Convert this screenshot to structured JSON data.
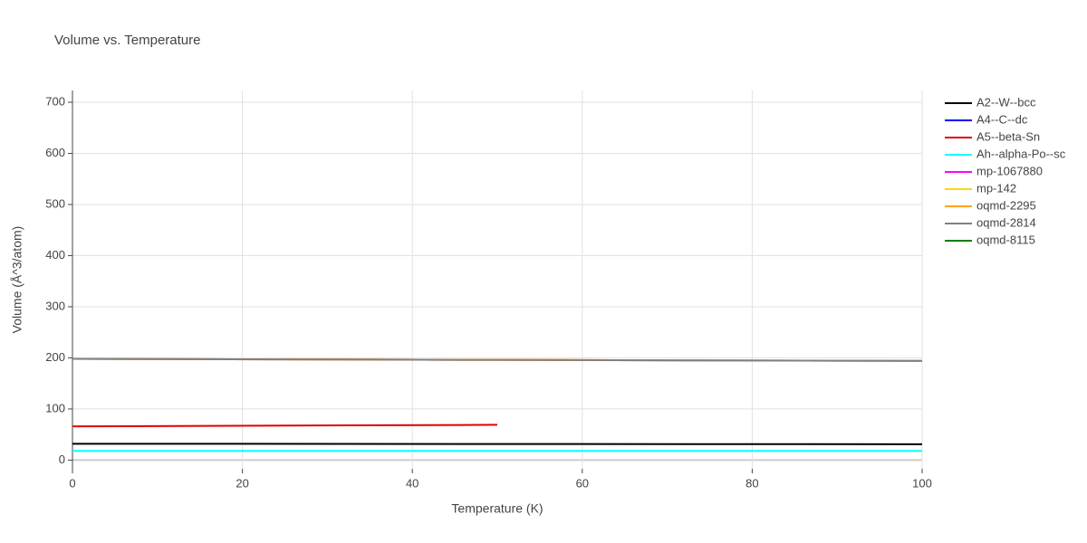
{
  "chart_data": {
    "type": "line",
    "title": "Volume vs. Temperature",
    "xlabel": "Temperature (K)",
    "ylabel": "Volume (Å^3/atom)",
    "x": [
      0,
      50,
      100
    ],
    "series": [
      {
        "name": "A2--W--bcc",
        "color": "#000000",
        "values": [
          32,
          31.5,
          31
        ]
      },
      {
        "name": "A4--C--dc",
        "color": "#0000ff",
        "values": [
          null,
          null,
          null
        ]
      },
      {
        "name": "A5--beta-Sn",
        "color": "#e00000",
        "values": [
          66,
          69,
          null
        ]
      },
      {
        "name": "Ah--alpha-Po--sc",
        "color": "#00ffff",
        "values": [
          18,
          18,
          18
        ]
      },
      {
        "name": "mp-1067880",
        "color": "#ff00ff",
        "values": [
          198,
          196,
          194
        ]
      },
      {
        "name": "mp-142",
        "color": "#ffd700",
        "values": [
          198,
          196,
          194
        ]
      },
      {
        "name": "oqmd-2295",
        "color": "#ffa500",
        "values": [
          198,
          196,
          194
        ]
      },
      {
        "name": "oqmd-2814",
        "color": "#808080",
        "values": [
          198,
          196,
          194
        ]
      },
      {
        "name": "oqmd-8115",
        "color": "#008000",
        "values": [
          null,
          null,
          null
        ]
      }
    ],
    "xlim": [
      0,
      100
    ],
    "xticks": [
      0,
      20,
      40,
      60,
      80,
      100
    ],
    "ylim": [
      -17,
      723
    ],
    "yticks": [
      0,
      100,
      200,
      300,
      400,
      500,
      600,
      700
    ],
    "grid": true,
    "legend": "right"
  }
}
